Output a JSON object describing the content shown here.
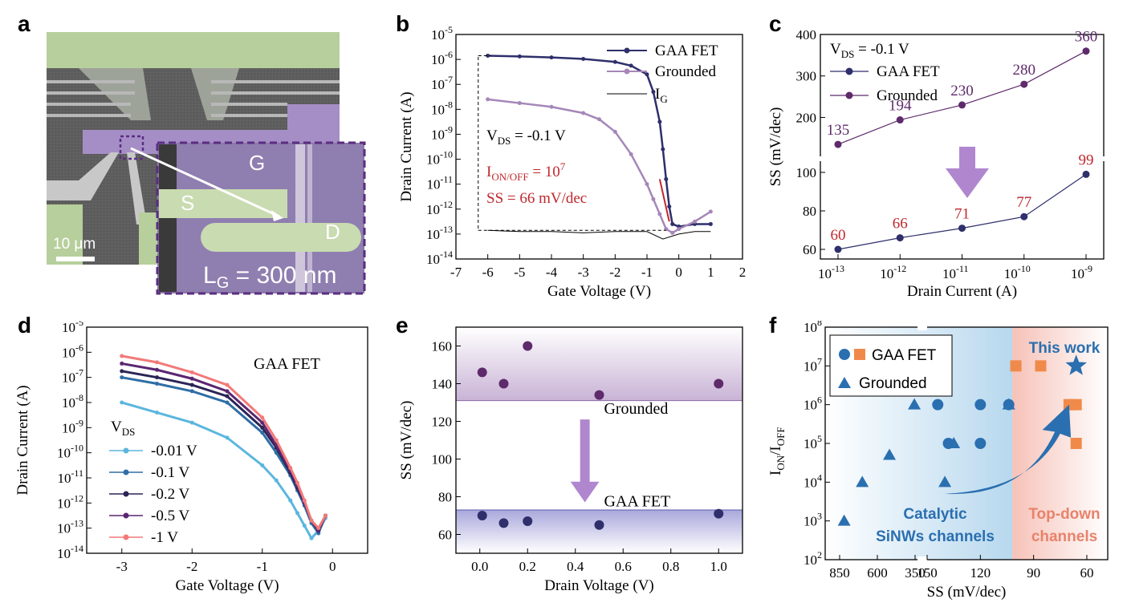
{
  "panel_labels": {
    "a": "a",
    "b": "b",
    "c": "c",
    "d": "d",
    "e": "e",
    "f": "f"
  },
  "panel_a": {
    "scale_bar": "10 μm",
    "inset_labels": {
      "gate": "G",
      "source": "S",
      "drain": "D"
    },
    "lg_main": "L",
    "lg_sub": "G",
    "lg_value": " = 300 nm"
  },
  "chart_data": [
    {
      "id": "b",
      "type": "line",
      "xlabel": "Gate Voltage (V)",
      "ylabel": "Drain Current (A)",
      "xlim": [
        -7,
        2
      ],
      "ylim_log10": [
        -14,
        -5
      ],
      "x_ticks": [
        "-7",
        "-6",
        "-5",
        "-4",
        "-3",
        "-2",
        "-1",
        "0",
        "1",
        "2"
      ],
      "y_tick_exponents": [
        "-14",
        "-13",
        "-12",
        "-11",
        "-10",
        "-9",
        "-8",
        "-7",
        "-6",
        "-5"
      ],
      "log_scale_y": true,
      "legend_position": "top-right",
      "series": [
        {
          "name": "GAA FET",
          "color": "#2e2f6b",
          "x": [
            -6,
            -5,
            -4,
            -3,
            -2,
            -1.5,
            -1,
            -0.8,
            -0.6,
            -0.5,
            -0.4,
            -0.3,
            -0.2,
            0,
            0.5,
            1
          ],
          "y_log10": [
            -5.85,
            -5.88,
            -5.92,
            -5.98,
            -6.1,
            -6.25,
            -6.6,
            -7.3,
            -8.5,
            -9.6,
            -10.8,
            -11.9,
            -12.6,
            -12.7,
            -12.6,
            -12.6
          ]
        },
        {
          "name": "Grounded",
          "color": "#a587b8",
          "x": [
            -6,
            -5,
            -4,
            -3,
            -2.5,
            -2,
            -1.5,
            -1,
            -0.8,
            -0.6,
            -0.4,
            -0.2,
            0,
            0.5,
            1
          ],
          "y_log10": [
            -7.6,
            -7.75,
            -7.9,
            -8.15,
            -8.4,
            -8.9,
            -9.8,
            -11.0,
            -11.6,
            -12.2,
            -12.8,
            -12.95,
            -12.8,
            -12.5,
            -12.1
          ]
        },
        {
          "name": "I",
          "sub": "G",
          "color": "#000000",
          "x": [
            -6,
            -5,
            -4,
            -3,
            -2,
            -1,
            -0.5,
            0,
            0.5,
            1
          ],
          "y_log10": [
            -12.85,
            -12.9,
            -12.9,
            -12.95,
            -12.9,
            -12.9,
            -13.2,
            -13.0,
            -12.9,
            -12.9
          ]
        }
      ],
      "annotations": {
        "vds": "V",
        "vds_sub": "DS",
        "vds_val": " = -0.1 V",
        "ion": "I",
        "ion_sub": "ON/OFF",
        "ion_val": " = 10",
        "ion_sup": "7",
        "ss": "SS = 66 mV/dec"
      }
    },
    {
      "id": "c",
      "type": "line",
      "xlabel": "Drain Current (A)",
      "ylabel": "SS (mV/dec)",
      "log_scale_x": true,
      "x_tick_exponents": [
        "-13",
        "-12",
        "-11",
        "-10",
        "-9"
      ],
      "broken_y_axis": true,
      "y_ticks_lower": [
        "60",
        "80",
        "100"
      ],
      "y_ticks_upper": [
        "200",
        "300",
        "400"
      ],
      "ylim_lower": [
        55,
        105
      ],
      "ylim_upper": [
        110,
        400
      ],
      "legend_position": "top-left",
      "annotation": {
        "vds": "V",
        "vds_sub": "DS",
        "vds_val": " = -0.1 V"
      },
      "series": [
        {
          "name": "GAA FET",
          "color": "#2e2f6b",
          "label_color": "#c0272d",
          "x_log10": [
            -13,
            -12,
            -11,
            -10,
            -9
          ],
          "values": [
            60,
            66,
            71,
            77,
            99
          ],
          "labels": [
            "60",
            "66",
            "71",
            "77",
            "99"
          ]
        },
        {
          "name": "Grounded",
          "color": "#5e2a6b",
          "label_color": "#5e2a6b",
          "x_log10": [
            -13,
            -12,
            -11,
            -10,
            -9
          ],
          "values": [
            135,
            194,
            230,
            280,
            360
          ],
          "labels": [
            "135",
            "194",
            "230",
            "280",
            "360"
          ]
        }
      ]
    },
    {
      "id": "d",
      "type": "line",
      "xlabel": "Gate Voltage (V)",
      "ylabel": "Drain Current (A)",
      "xlim": [
        -3.5,
        0.5
      ],
      "x_ticks": [
        "-3",
        "-2",
        "-1",
        "0"
      ],
      "ylim_log10": [
        -14,
        -5
      ],
      "y_tick_exponents": [
        "-14",
        "-13",
        "-12",
        "-11",
        "-10",
        "-9",
        "-8",
        "-7",
        "-6",
        "-5"
      ],
      "log_scale_y": true,
      "title_text": "GAA FET",
      "legend_title": "V",
      "legend_title_sub": "DS",
      "legend_position": "bottom-left",
      "series": [
        {
          "name": "-0.01 V",
          "color": "#5bb6de",
          "x": [
            -3,
            -2.5,
            -2,
            -1.5,
            -1,
            -0.8,
            -0.6,
            -0.5,
            -0.4,
            -0.3,
            -0.2,
            -0.1
          ],
          "y_log10": [
            -8.0,
            -8.4,
            -8.8,
            -9.4,
            -10.5,
            -11.1,
            -11.9,
            -12.4,
            -12.9,
            -13.4,
            -13.1,
            -12.6
          ]
        },
        {
          "name": "-0.1 V",
          "color": "#2f6ea6",
          "x": [
            -3,
            -2.5,
            -2,
            -1.5,
            -1,
            -0.8,
            -0.6,
            -0.5,
            -0.4,
            -0.3,
            -0.2,
            -0.1
          ],
          "y_log10": [
            -7.0,
            -7.25,
            -7.55,
            -8.0,
            -9.2,
            -10.0,
            -10.9,
            -11.5,
            -12.1,
            -12.8,
            -13.2,
            -12.5
          ]
        },
        {
          "name": "-0.2 V",
          "color": "#2b2557",
          "x": [
            -3,
            -2.5,
            -2,
            -1.5,
            -1,
            -0.8,
            -0.6,
            -0.5,
            -0.4,
            -0.3,
            -0.2,
            -0.1
          ],
          "y_log10": [
            -6.75,
            -7.0,
            -7.3,
            -7.75,
            -9.0,
            -9.8,
            -10.8,
            -11.4,
            -12.0,
            -12.7,
            -13.1,
            -12.5
          ]
        },
        {
          "name": "-0.5 V",
          "color": "#5a2670",
          "x": [
            -3,
            -2.5,
            -2,
            -1.5,
            -1,
            -0.8,
            -0.6,
            -0.5,
            -0.4,
            -0.3,
            -0.2,
            -0.1
          ],
          "y_log10": [
            -6.45,
            -6.7,
            -7.05,
            -7.55,
            -8.8,
            -9.7,
            -10.7,
            -11.3,
            -12.0,
            -12.7,
            -13.1,
            -12.5
          ]
        },
        {
          "name": "-1 V",
          "color": "#f27a78",
          "x": [
            -3,
            -2.5,
            -2,
            -1.5,
            -1,
            -0.8,
            -0.6,
            -0.5,
            -0.4,
            -0.3,
            -0.2,
            -0.1
          ],
          "y_log10": [
            -6.15,
            -6.4,
            -6.8,
            -7.3,
            -8.6,
            -9.5,
            -10.6,
            -11.2,
            -11.9,
            -12.7,
            -13.0,
            -12.5
          ]
        }
      ]
    },
    {
      "id": "e",
      "type": "scatter",
      "xlabel": "Drain Voltage (V)",
      "ylabel": "SS (mV/dec)",
      "xlim": [
        -0.1,
        1.1
      ],
      "ylim": [
        50,
        170
      ],
      "x_ticks": [
        "0.0",
        "0.2",
        "0.4",
        "0.6",
        "0.8",
        "1.0"
      ],
      "y_ticks": [
        "60",
        "80",
        "100",
        "120",
        "140",
        "160"
      ],
      "band_labels": {
        "upper": "Grounded",
        "lower": "GAA FET"
      },
      "series": [
        {
          "name": "Grounded",
          "color": "#5e2a6b",
          "x": [
            0.01,
            0.1,
            0.2,
            0.5,
            1.0
          ],
          "values": [
            146,
            140,
            160,
            134,
            140
          ]
        },
        {
          "name": "GAA FET",
          "color": "#2e2f6b",
          "x": [
            0.01,
            0.1,
            0.2,
            0.5,
            1.0
          ],
          "values": [
            70,
            66,
            67,
            65,
            71
          ]
        }
      ]
    },
    {
      "id": "f",
      "type": "scatter",
      "xlabel": "SS (mV/dec)",
      "ylabel": "I",
      "ylabel_sub": "ON",
      "ylabel_mid": "/I",
      "ylabel_sub2": "OFF",
      "log_scale_y": true,
      "ylim_log10": [
        2,
        8
      ],
      "y_tick_exponents": [
        "2",
        "3",
        "4",
        "5",
        "6",
        "7",
        "8"
      ],
      "x_ticks": [
        "850",
        "600",
        "350",
        "150",
        "120",
        "90",
        "60"
      ],
      "broken_x_axis": true,
      "legend_position": "top-left",
      "region_labels": {
        "left_line1": "Catalytic",
        "left_line2": "SiNWs channels",
        "right_line1": "Top-down",
        "right_line2": "channels",
        "this_work": "This work"
      },
      "series": [
        {
          "name": "GAA FET",
          "marker": "circle-and-square",
          "color": "#2a6fb0",
          "square_color": "#f08a4b"
        },
        {
          "name": "Grounded",
          "marker": "triangle",
          "color": "#2a6fb0"
        }
      ],
      "points_catalytic_circles": [
        {
          "ss": 144,
          "log10": 6
        },
        {
          "ss": 138,
          "log10": 5
        },
        {
          "ss": 120,
          "log10": 6
        },
        {
          "ss": 120,
          "log10": 5
        },
        {
          "ss": 104,
          "log10": 6
        }
      ],
      "points_catalytic_triangles": [
        {
          "ss": 820,
          "log10": 3
        },
        {
          "ss": 700,
          "log10": 4
        },
        {
          "ss": 520,
          "log10": 4.7
        },
        {
          "ss": 355,
          "log10": 6
        },
        {
          "ss": 140,
          "log10": 4
        },
        {
          "ss": 135,
          "log10": 5
        },
        {
          "ss": 104,
          "log10": 6
        }
      ],
      "points_topdown_squares": [
        {
          "ss": 100,
          "log10": 7
        },
        {
          "ss": 86,
          "log10": 7
        },
        {
          "ss": 70,
          "log10": 6
        },
        {
          "ss": 66,
          "log10": 6
        },
        {
          "ss": 66,
          "log10": 5
        }
      ],
      "this_work_point": {
        "ss": 66,
        "log10": 7
      }
    }
  ]
}
